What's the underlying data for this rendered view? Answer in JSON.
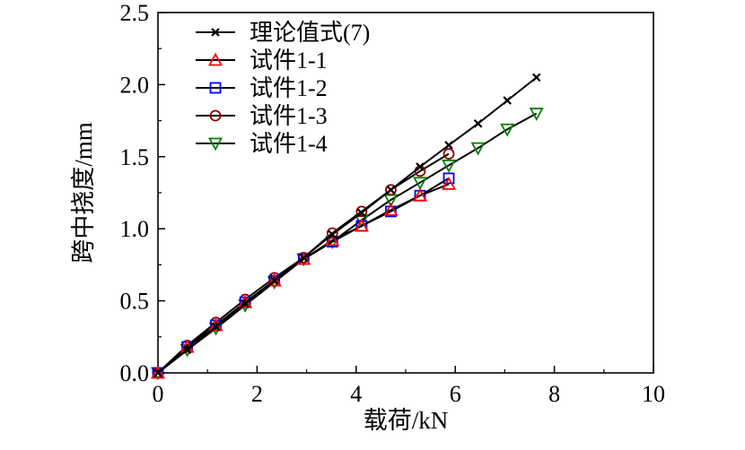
{
  "chart_data": {
    "type": "line",
    "xlabel": "载荷/kN",
    "ylabel": "跨中挠度/mm",
    "xlim": [
      0,
      10
    ],
    "ylim": [
      0,
      2.5
    ],
    "xticks": [
      "0",
      "2",
      "4",
      "6",
      "8",
      "10"
    ],
    "yticks": [
      "0.0",
      "0.5",
      "1.0",
      "1.5",
      "2.0",
      "2.5"
    ],
    "grid": false,
    "legend_position": "top-left",
    "series": [
      {
        "name": "理论值式(7)",
        "marker": "x",
        "color": "#000000",
        "x": [
          0,
          0.59,
          1.17,
          1.76,
          2.35,
          2.94,
          3.52,
          4.11,
          4.7,
          5.29,
          5.87,
          6.46,
          7.05,
          7.64
        ],
        "y": [
          0,
          0.16,
          0.32,
          0.48,
          0.64,
          0.8,
          0.96,
          1.11,
          1.27,
          1.43,
          1.58,
          1.73,
          1.89,
          2.05
        ]
      },
      {
        "name": "试件1-1",
        "marker": "triangle-up",
        "color": "#ff0000",
        "x": [
          0,
          0.59,
          1.17,
          1.76,
          2.35,
          2.94,
          3.52,
          4.11,
          4.7,
          5.29,
          5.87
        ],
        "y": [
          0,
          0.18,
          0.33,
          0.49,
          0.64,
          0.79,
          0.92,
          1.02,
          1.13,
          1.23,
          1.31
        ]
      },
      {
        "name": "试件1-2",
        "marker": "square",
        "color": "#0000ff",
        "x": [
          0,
          0.59,
          1.17,
          1.76,
          2.35,
          2.94,
          3.52,
          4.11,
          4.7,
          5.29,
          5.87
        ],
        "y": [
          0,
          0.18,
          0.33,
          0.49,
          0.64,
          0.79,
          0.91,
          1.02,
          1.12,
          1.23,
          1.35
        ]
      },
      {
        "name": "试件1-3",
        "marker": "circle",
        "color": "#8b0000",
        "x": [
          0,
          0.59,
          1.17,
          1.76,
          2.35,
          2.94,
          3.52,
          4.11,
          4.7,
          5.29,
          5.87
        ],
        "y": [
          0,
          0.19,
          0.35,
          0.51,
          0.66,
          0.8,
          0.97,
          1.12,
          1.27,
          1.4,
          1.52
        ]
      },
      {
        "name": "试件1-4",
        "marker": "triangle-down",
        "color": "#008000",
        "x": [
          0,
          0.59,
          1.17,
          1.76,
          2.35,
          2.94,
          3.52,
          4.11,
          4.7,
          5.29,
          5.87,
          6.46,
          7.05,
          7.64
        ],
        "y": [
          0,
          0.16,
          0.31,
          0.47,
          0.63,
          0.79,
          0.91,
          1.06,
          1.2,
          1.32,
          1.44,
          1.56,
          1.69,
          1.8
        ]
      }
    ]
  }
}
